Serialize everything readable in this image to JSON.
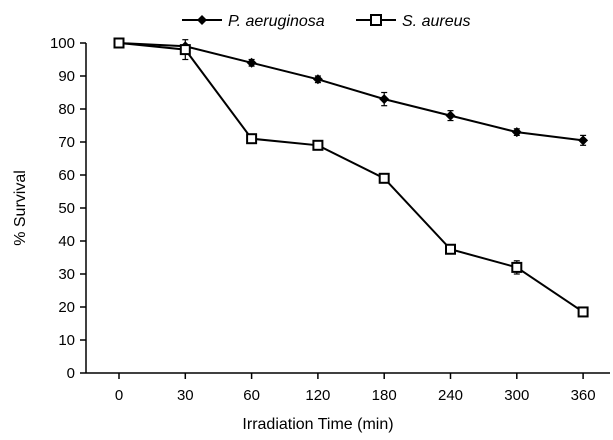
{
  "chart_data": {
    "type": "line",
    "title": "",
    "xlabel": "Irradiation Time (min)",
    "ylabel": "% Survival",
    "categories": [
      "0",
      "30",
      "60",
      "120",
      "180",
      "240",
      "300",
      "360"
    ],
    "ylim": [
      0,
      100
    ],
    "yticks": [
      0,
      10,
      20,
      30,
      40,
      50,
      60,
      70,
      80,
      90,
      100
    ],
    "grid": false,
    "legend_position": "top",
    "series": [
      {
        "name": "P. aeruginosa",
        "marker": "diamond-filled",
        "color": "#000000",
        "values": [
          100,
          99,
          94,
          89,
          83,
          78,
          73,
          70.5
        ],
        "errors": [
          0,
          0.5,
          1,
          1,
          2,
          1.5,
          1,
          1.5
        ]
      },
      {
        "name": "S. aureus",
        "marker": "square-open",
        "color": "#000000",
        "values": [
          100,
          98,
          71,
          69,
          59,
          37.5,
          32,
          18.5
        ],
        "errors": [
          0,
          3,
          1,
          1,
          1,
          1,
          2,
          1
        ]
      }
    ]
  }
}
